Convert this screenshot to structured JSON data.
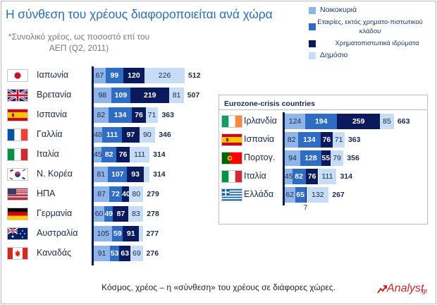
{
  "title": "Η σύνθεση του χρέους διαφοροποιείται ανά χώρα",
  "subtitle": "*Συνολικό χρέος, ως ποσοστό επί του ΑΕΠ (Q2, 2011)",
  "caption": "Κόσμος, χρέος – η «σύνθεση» του χρέους σε διάφορες χώρες.",
  "logo": {
    "text": "Analyst",
    "suffix": ".gr"
  },
  "legend": [
    {
      "label": "Νοικοκυριά",
      "color": "#8fb4e8"
    },
    {
      "label": "Εταιρίες, εκτός χρηματο-πιστωτικού κλάδου",
      "color": "#2f6cc4"
    },
    {
      "label": "Χρηματοπιστωτικά ιδρύματα",
      "color": "#0b1a5c"
    },
    {
      "label": "Δημόσιο",
      "color": "#c6ddf5"
    }
  ],
  "colors": {
    "households": "#8fb4e8",
    "corporates": "#2f6cc4",
    "financial": "#0b1a5c",
    "government": "#c6ddf5",
    "axis": "#0b1a4a",
    "title": "#2a6fb0"
  },
  "euro_title": "Eurozone-crisis countries",
  "chart_data": [
    {
      "type": "bar",
      "stacked": true,
      "orientation": "horizontal",
      "title": "Η σύνθεση του χρέους διαφοροποιείται ανά χώρα",
      "categories": [
        "Ιαπωνία",
        "Βρετανία",
        "Ισπανία",
        "Γαλλία",
        "Ιταλία",
        "Ν. Κορέα",
        "ΗΠΑ",
        "Γερμανία",
        "Αυστραλία",
        "Καναδάς"
      ],
      "flags": [
        "japan-flag",
        "uk-flag",
        "spain-flag",
        "france-flag",
        "italy-flag",
        "korea-flag",
        "usa-flag",
        "germany-flag",
        "australia-flag",
        "canada-flag"
      ],
      "series": [
        {
          "name": "Νοικοκυριά",
          "values": [
            67,
            98,
            82,
            48,
            45,
            81,
            87,
            60,
            105,
            91
          ]
        },
        {
          "name": "Εταιρίες, εκτός χρηματο-πιστωτικού κλάδου",
          "values": [
            99,
            109,
            134,
            111,
            82,
            107,
            72,
            49,
            59,
            53
          ]
        },
        {
          "name": "Χρηματοπιστωτικά ιδρύματα",
          "values": [
            120,
            219,
            76,
            97,
            76,
            93,
            40,
            87,
            91,
            63
          ]
        },
        {
          "name": "Δημόσιο",
          "values": [
            226,
            81,
            71,
            90,
            111,
            33,
            80,
            83,
            21,
            69
          ]
        }
      ],
      "totals": [
        512,
        507,
        363,
        346,
        314,
        314,
        279,
        278,
        277,
        276
      ]
    },
    {
      "type": "bar",
      "stacked": true,
      "orientation": "horizontal",
      "title": "Eurozone-crisis countries",
      "categories": [
        "Ιρλανδία",
        "Ισπανία",
        "Πορτογ.",
        "Ιταλία",
        "Ελλάδα"
      ],
      "flags": [
        "ireland-flag",
        "spain-flag",
        "portugal-flag",
        "italy-flag",
        "greece-flag"
      ],
      "series": [
        {
          "name": "Νοικοκυριά",
          "values": [
            124,
            82,
            94,
            45,
            62
          ]
        },
        {
          "name": "Εταιρίες, εκτός χρηματο-πιστωτικού κλάδου",
          "values": [
            194,
            134,
            128,
            82,
            65
          ]
        },
        {
          "name": "Χρηματοπιστωτικά ιδρύματα",
          "values": [
            259,
            76,
            55,
            76,
            7
          ]
        },
        {
          "name": "Δημόσιο",
          "values": [
            85,
            71,
            79,
            111,
            132
          ]
        }
      ],
      "totals": [
        663,
        363,
        356,
        314,
        267
      ]
    }
  ]
}
